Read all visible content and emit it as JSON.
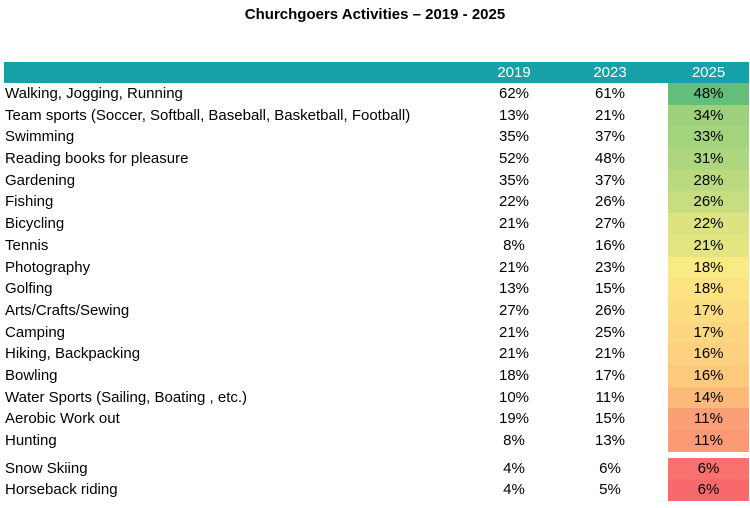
{
  "chart_data": {
    "type": "table",
    "title": "Churchgoers Activities – 2019 - 2025",
    "columns": [
      "2019",
      "2023",
      "2025"
    ],
    "rows": [
      {
        "label": "Walking, Jogging, Running",
        "values": [
          "62%",
          "61%",
          "48%"
        ],
        "color": "#63be7b"
      },
      {
        "label": "Team sports (Soccer, Softball, Baseball, Basketball, Football)",
        "values": [
          "13%",
          "21%",
          "34%"
        ],
        "color": "#9fd17d"
      },
      {
        "label": "Swimming",
        "values": [
          "35%",
          "37%",
          "33%"
        ],
        "color": "#a4d37e"
      },
      {
        "label": "Reading books for pleasure",
        "values": [
          "52%",
          "48%",
          "31%"
        ],
        "color": "#add67e"
      },
      {
        "label": "Gardening",
        "values": [
          "35%",
          "37%",
          "28%"
        ],
        "color": "#bbda7f"
      },
      {
        "label": "Fishing",
        "values": [
          "22%",
          "26%",
          "26%"
        ],
        "color": "#c6dd80"
      },
      {
        "label": "Bicycling",
        "values": [
          "21%",
          "27%",
          "22%"
        ],
        "color": "#dde381"
      },
      {
        "label": "Tennis",
        "values": [
          "8%",
          "16%",
          "21%"
        ],
        "color": "#e3e582"
      },
      {
        "label": "Photography",
        "values": [
          "21%",
          "23%",
          "18%"
        ],
        "color": "#f8eb84"
      },
      {
        "label": "Golfing",
        "values": [
          "13%",
          "15%",
          "18%"
        ],
        "color": "#fee383"
      },
      {
        "label": "Arts/Crafts/Sewing",
        "values": [
          "27%",
          "26%",
          "17%"
        ],
        "color": "#fddd82"
      },
      {
        "label": "Camping",
        "values": [
          "21%",
          "25%",
          "17%"
        ],
        "color": "#fdd680"
      },
      {
        "label": "Hiking, Backpacking",
        "values": [
          "21%",
          "21%",
          "16%"
        ],
        "color": "#fdd17f"
      },
      {
        "label": "Bowling",
        "values": [
          "18%",
          "17%",
          "16%"
        ],
        "color": "#fdc97d"
      },
      {
        "label": "Water Sports (Sailing, Boating , etc.)",
        "values": [
          "10%",
          "11%",
          "14%"
        ],
        "color": "#fcba7a"
      },
      {
        "label": "Aerobic Work out",
        "values": [
          "19%",
          "15%",
          "11%"
        ],
        "color": "#fba076"
      },
      {
        "label": "Hunting",
        "values": [
          "8%",
          "13%",
          "11%"
        ],
        "color": "#fb9a75"
      },
      {
        "label": "Snow Skiing",
        "values": [
          "4%",
          "6%",
          "6%"
        ],
        "color": "#f8716e",
        "gap": true
      },
      {
        "label": "Horseback riding",
        "values": [
          "4%",
          "5%",
          "6%"
        ],
        "color": "#f8696b"
      }
    ]
  }
}
